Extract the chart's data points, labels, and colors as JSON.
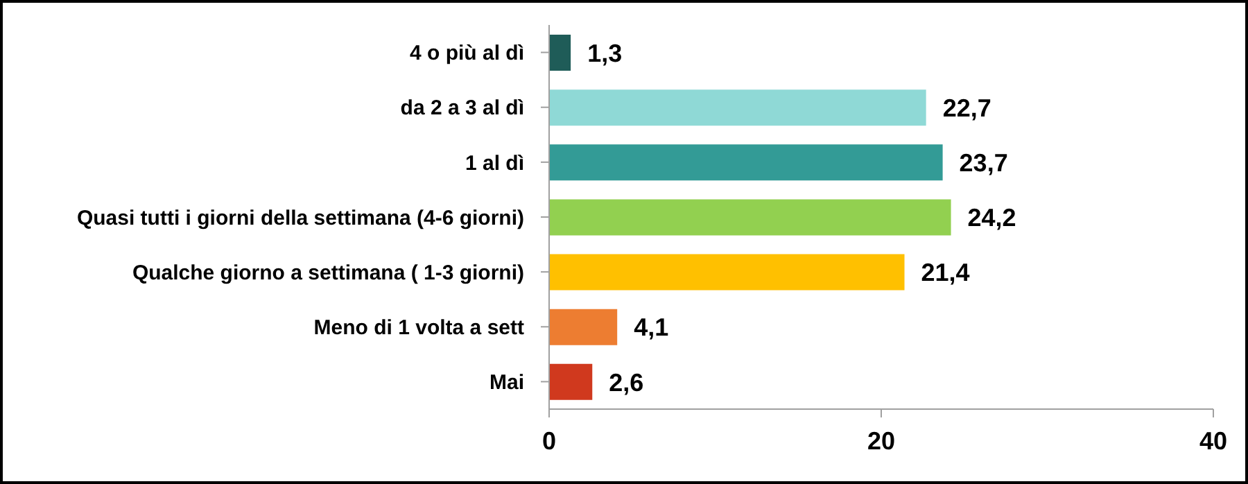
{
  "chart_data": {
    "type": "bar",
    "orientation": "horizontal",
    "categories": [
      "4 o più al dì",
      "da 2 a 3 al dì",
      "1 al dì",
      "Quasi tutti i giorni della settimana (4-6 giorni)",
      "Qualche giorno a settimana ( 1-3 giorni)",
      "Meno di 1 volta a sett",
      "Mai"
    ],
    "values": [
      1.3,
      22.7,
      23.7,
      24.2,
      21.4,
      4.1,
      2.6
    ],
    "colors": [
      "#1f5c58",
      "#8fd9d6",
      "#339b96",
      "#92d050",
      "#ffc000",
      "#ed7d31",
      "#d0391e"
    ],
    "value_labels": [
      "1,3",
      "22,7",
      "23,7",
      "24,2",
      "21,4",
      "4,1",
      "2,6"
    ],
    "xlim": [
      0,
      40
    ],
    "xticks": [
      0,
      20,
      40
    ],
    "grid": false,
    "legend": false
  }
}
